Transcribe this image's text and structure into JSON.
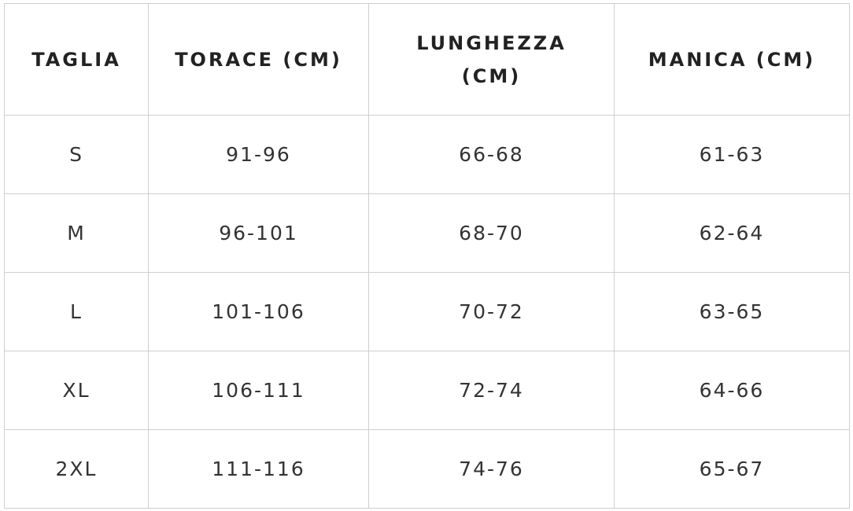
{
  "table": {
    "header": [
      "TAGLIA",
      "TORACE (CM)",
      "LUNGHEZZA (CM)",
      "MANICA (CM)"
    ],
    "rows": [
      [
        "S",
        "91-96",
        "66-68",
        "61-63"
      ],
      [
        "M",
        "96-101",
        "68-70",
        "62-64"
      ],
      [
        "L",
        "101-106",
        "70-72",
        "63-65"
      ],
      [
        "XL",
        "106-111",
        "72-74",
        "64-66"
      ],
      [
        "2XL",
        "111-116",
        "74-76",
        "65-67"
      ]
    ]
  }
}
